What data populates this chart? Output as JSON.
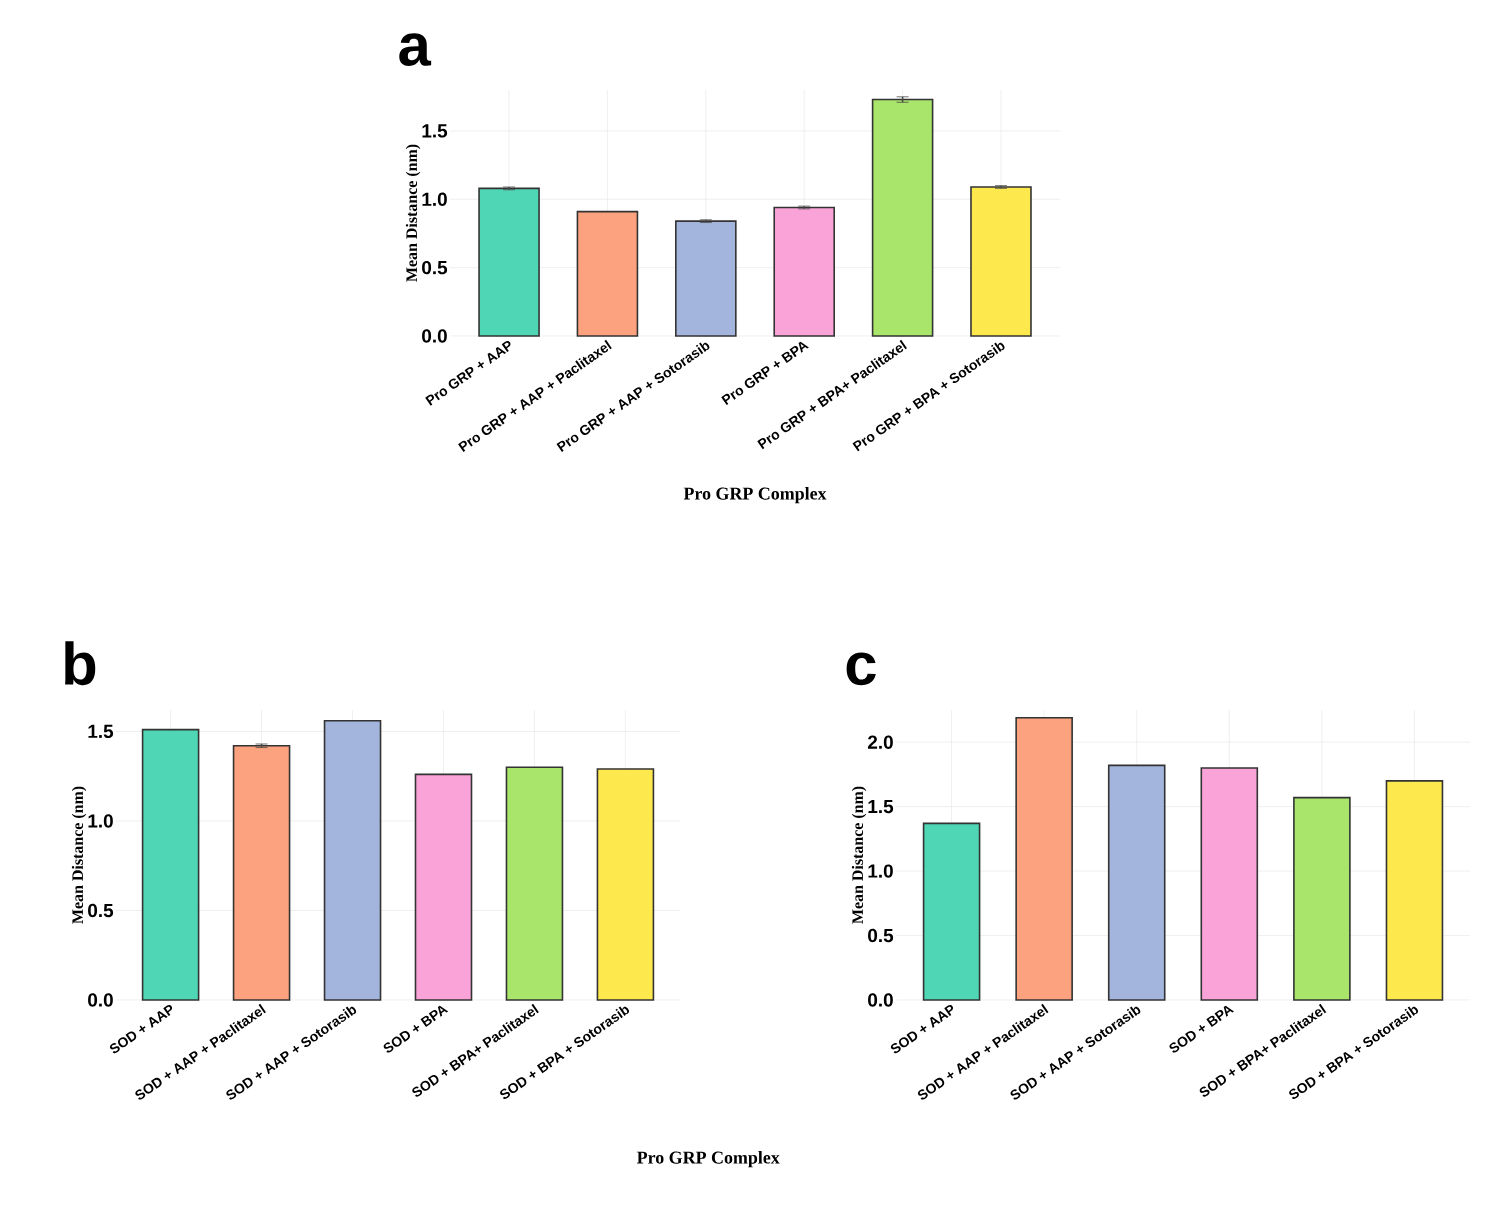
{
  "chart_data": [
    {
      "type": "bar",
      "title": "a",
      "xlabel": "Pro GRP Complex",
      "ylabel": "Mean Distance (nm)",
      "categories": [
        "Pro GRP + AAP",
        "Pro GRP + AAP + Paclitaxel",
        "Pro GRP + AAP + Sotorasib",
        "Pro GRP + BPA",
        "Pro GRP + BPA+ Paclitaxel",
        "Pro GRP + BPA + Sotorasib"
      ],
      "values": [
        1.08,
        0.91,
        0.84,
        0.94,
        1.73,
        1.09
      ],
      "errors": [
        0.01,
        null,
        0.01,
        0.01,
        0.02,
        0.01
      ],
      "colors": [
        "#4fd6b4",
        "#fca27e",
        "#a3b5dc",
        "#f9a3d8",
        "#a8e56a",
        "#fde84e"
      ],
      "ylim": [
        0,
        1.8
      ],
      "yticks": [
        {
          "value": 0,
          "label": "0.0"
        },
        {
          "value": 0.5,
          "label": "0.5"
        },
        {
          "value": 1,
          "label": "1.0"
        },
        {
          "value": 1.5,
          "label": "1.5"
        }
      ],
      "grid": true
    },
    {
      "type": "bar",
      "title": "b",
      "xlabel": "Pro GRP Complex",
      "ylabel": "Mean Distance (nm)",
      "categories": [
        "SOD + AAP",
        "SOD + AAP + Paclitaxel",
        "SOD + AAP + Sotorasib",
        "SOD + BPA",
        "SOD + BPA+ Paclitaxel",
        "SOD + BPA + Sotorasib"
      ],
      "values": [
        1.51,
        1.42,
        1.56,
        1.26,
        1.3,
        1.29
      ],
      "errors": [
        null,
        0.01,
        null,
        null,
        null,
        null
      ],
      "colors": [
        "#4fd6b4",
        "#fca27e",
        "#a3b5dc",
        "#f9a3d8",
        "#a8e56a",
        "#fde84e"
      ],
      "ylim": [
        0,
        1.62
      ],
      "yticks": [
        {
          "value": 0,
          "label": "0.0"
        },
        {
          "value": 0.5,
          "label": "0.5"
        },
        {
          "value": 1,
          "label": "1.0"
        },
        {
          "value": 1.5,
          "label": "1.5"
        }
      ],
      "grid": true
    },
    {
      "type": "bar",
      "title": "c",
      "ylabel": "Mean Distance (nm)",
      "categories": [
        "SOD + AAP",
        "SOD + AAP + Paclitaxel",
        "SOD + AAP + Sotorasib",
        "SOD + BPA",
        "SOD + BPA+ Paclitaxel",
        "SOD + BPA + Sotorasib"
      ],
      "values": [
        1.37,
        2.19,
        1.82,
        1.8,
        1.57,
        1.7
      ],
      "colors": [
        "#4fd6b4",
        "#fca27e",
        "#a3b5dc",
        "#f9a3d8",
        "#a8e56a",
        "#fde84e"
      ],
      "ylim": [
        0,
        2.25
      ],
      "yticks": [
        {
          "value": 0,
          "label": "0.0"
        },
        {
          "value": 0.5,
          "label": "0.5"
        },
        {
          "value": 1,
          "label": "1.0"
        },
        {
          "value": 1.5,
          "label": "1.5"
        },
        {
          "value": 2,
          "label": "2.0"
        }
      ],
      "grid": true
    }
  ]
}
